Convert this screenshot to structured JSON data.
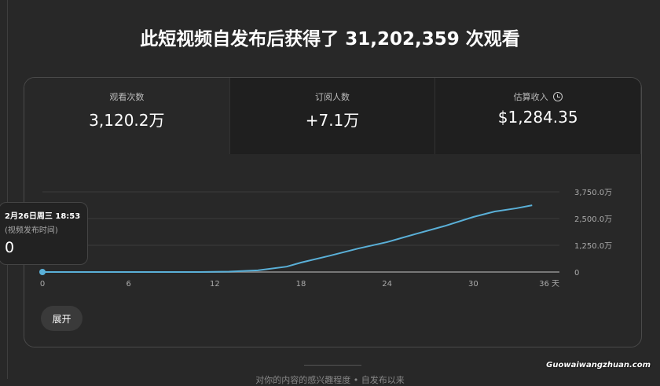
{
  "title": "此短视频自发布后获得了 31,202,359 次观看",
  "cards": [
    {
      "label": "观看次数",
      "value": "3,120.2万",
      "selected": true
    },
    {
      "label": "订阅人数",
      "value": "+7.1万"
    },
    {
      "label": "估算收入",
      "value": "$1,284.35",
      "icon": "clock-icon"
    }
  ],
  "tooltip": {
    "date": "2月26日周三 18:53",
    "note": "(视频发布时间)",
    "value": "0"
  },
  "expand_label": "展开",
  "bottom_text": "对你的内容的感兴趣程度 • 自发布以来",
  "watermark": "Guowaiwangzhuan.com",
  "chart_data": {
    "type": "line",
    "x_ticks": [
      "0",
      "6",
      "12",
      "18",
      "24",
      "30",
      "36 天"
    ],
    "y_ticks": [
      "0",
      "1,250.0万",
      "2,500.0万",
      "3,750.0万"
    ],
    "xlim": [
      0,
      36
    ],
    "ylim": [
      0,
      3750
    ],
    "x": [
      0,
      11,
      13,
      15,
      17,
      18,
      20,
      22,
      24,
      26,
      28,
      30,
      31.5,
      33,
      34.1
    ],
    "y": [
      0,
      0,
      20,
      80,
      250,
      441,
      760,
      1100,
      1400,
      1780,
      2150,
      2574,
      2830,
      2980,
      3120
    ],
    "color": "#5ab0d8",
    "grid": true
  }
}
